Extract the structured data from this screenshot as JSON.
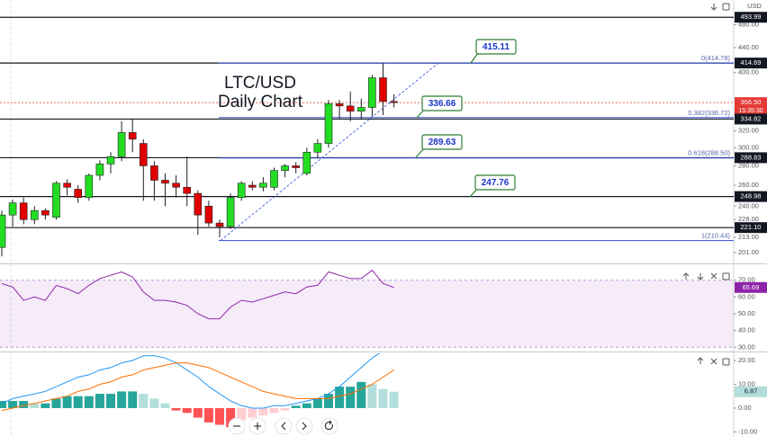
{
  "chart_data": [
    {
      "type": "candlestick",
      "title": "LTC/USD",
      "subtitle": "Daily Chart",
      "currency": "USD",
      "log_scale": true,
      "ylim": [
        193.5,
        513.4
      ],
      "yticks": [
        {
          "value": 480,
          "label": "480.00"
        },
        {
          "value": 440,
          "label": "440.00"
        },
        {
          "value": 400,
          "label": "400.00"
        },
        {
          "value": 320,
          "label": "320.00"
        },
        {
          "value": 300,
          "label": "300.00"
        },
        {
          "value": 280,
          "label": "280.00"
        },
        {
          "value": 260,
          "label": "260.00"
        },
        {
          "value": 240,
          "label": "240.00"
        },
        {
          "value": 228,
          "label": "228.00"
        },
        {
          "value": 213,
          "label": "213.00"
        },
        {
          "value": 201,
          "label": "201.00"
        }
      ],
      "up_color": "#22dd22",
      "down_color": "#e00000",
      "open": [
        205,
        232,
        243,
        228,
        236,
        230,
        262,
        256,
        248,
        270,
        282,
        290,
        318,
        305,
        280,
        265,
        262,
        258,
        252,
        240,
        225,
        222,
        248,
        260,
        258,
        258,
        275,
        280,
        272,
        295,
        305,
        355,
        352,
        345,
        350,
        392,
        358
      ],
      "high": [
        236,
        246,
        248,
        240,
        238,
        264,
        266,
        260,
        272,
        286,
        295,
        332,
        335,
        310,
        285,
        272,
        270,
        290,
        255,
        245,
        228,
        252,
        264,
        264,
        268,
        278,
        282,
        284,
        300,
        310,
        360,
        360,
        372,
        362,
        396,
        415,
        368
      ],
      "low": [
        198,
        222,
        224,
        224,
        228,
        228,
        250,
        243,
        245,
        265,
        272,
        285,
        295,
        245,
        245,
        240,
        248,
        240,
        215,
        222,
        213,
        220,
        245,
        255,
        254,
        255,
        268,
        272,
        270,
        288,
        300,
        335,
        332,
        335,
        338,
        340,
        350
      ],
      "close": [
        232,
        243,
        228,
        236,
        232,
        262,
        258,
        248,
        270,
        282,
        290,
        318,
        310,
        280,
        265,
        262,
        258,
        252,
        232,
        225,
        222,
        248,
        262,
        258,
        262,
        275,
        280,
        278,
        295,
        305,
        355,
        352,
        345,
        350,
        392,
        358,
        356.5
      ],
      "levels": [
        {
          "value": 493.99,
          "color": "#131722"
        },
        {
          "value": 414.69,
          "color": "#131722"
        },
        {
          "value": 356.5,
          "label": "356.50",
          "color": "#e53935"
        },
        {
          "value": 334.82,
          "color": "#131722"
        },
        {
          "value": 288.83,
          "color": "#131722"
        },
        {
          "value": 248.98,
          "color": "#131722"
        },
        {
          "value": 221.1,
          "label": "221.10",
          "color": "#131722"
        }
      ],
      "countdown": "15:35:30",
      "fib_levels": [
        {
          "value": 414.78,
          "label": "0(414.78)"
        },
        {
          "value": 336.72,
          "label": "0.382(336.72)"
        },
        {
          "value": 288.5,
          "label": "0.618(288.50)"
        },
        {
          "value": 210.44,
          "label": "1(210.44)"
        }
      ],
      "fib_color": "#2f4fd6",
      "callouts": [
        415.11,
        336.66,
        289.63,
        247.76
      ]
    },
    {
      "type": "line",
      "name": "rsi",
      "color": "#8e24aa",
      "band": [
        30,
        70
      ],
      "ylim": [
        28,
        79
      ],
      "yticks": [
        {
          "value": 70,
          "label": "70.00"
        },
        {
          "value": 60,
          "label": "60.00"
        },
        {
          "value": 50,
          "label": "50.00"
        },
        {
          "value": 40,
          "label": "40.00"
        },
        {
          "value": 30,
          "label": "30.00"
        }
      ],
      "values": [
        68,
        66,
        58,
        60,
        58,
        67,
        65,
        62,
        67,
        71,
        73,
        75,
        72,
        63,
        58,
        58,
        57,
        55,
        50,
        47,
        47,
        54,
        58,
        57,
        59,
        61,
        63,
        62,
        66,
        67,
        75,
        73,
        71,
        71,
        76,
        68,
        65.69
      ]
    },
    {
      "type": "macd",
      "ylim": [
        -11.7,
        23
      ],
      "yticks": [
        {
          "value": 20,
          "label": "20.00"
        },
        {
          "value": 10,
          "label": "10.00"
        },
        {
          "value": 0,
          "label": "0.00"
        },
        {
          "value": -10,
          "label": "-10.00"
        }
      ],
      "histogram": [
        3,
        3,
        3,
        2,
        2,
        4,
        5,
        5,
        5,
        6,
        6,
        7,
        7,
        6,
        4,
        2,
        -1,
        -2,
        -4,
        -6,
        -7,
        -8,
        -5,
        -4,
        -3,
        -2,
        -1,
        1,
        2,
        4,
        6,
        9,
        9,
        11,
        10,
        8,
        6.87
      ],
      "histogram_colors": [
        "#26a69a",
        "#b2dfdb",
        "#ff5252",
        "#ffcdd2"
      ],
      "series": [
        {
          "color": "#2196f3",
          "values": [
            2,
            4,
            5,
            6,
            7,
            9,
            11,
            13,
            14,
            16,
            17,
            19,
            20,
            22,
            22,
            21,
            19,
            16,
            13,
            9,
            6,
            3,
            1,
            0,
            0,
            1,
            1,
            2,
            3,
            4,
            6,
            9,
            13,
            17,
            21,
            24,
            26
          ]
        },
        {
          "color": "#ff6d00",
          "values": [
            -1,
            0,
            1,
            2,
            3,
            4,
            5,
            7,
            8,
            10,
            11,
            13,
            14,
            16,
            17,
            18,
            19,
            19,
            18,
            17,
            15,
            13,
            11,
            9,
            7,
            6,
            5,
            4,
            4,
            4,
            4,
            5,
            6,
            8,
            10,
            13,
            16
          ]
        }
      ]
    }
  ]
}
